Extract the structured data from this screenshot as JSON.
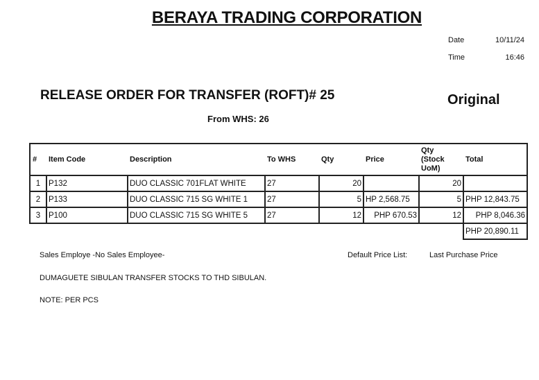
{
  "company": "BERAYA TRADING CORPORATION",
  "date_label": "Date",
  "date_value": "10/11/24",
  "time_label": "Time",
  "time_value": "16:46",
  "title": "RELEASE ORDER FOR TRANSFER (ROFT)# 25",
  "copy_label": "Original",
  "from_whs": "From WHS: 26",
  "table": {
    "headers": [
      "#",
      "Item Code",
      "Description",
      "To WHS",
      "Qty",
      "Price",
      "Qty\n(Stock\nUoM)",
      "Total"
    ],
    "rows": [
      {
        "no": "1",
        "code": "P132",
        "desc": "DUO CLASSIC 701FLAT WHITE",
        "whs": "27",
        "qty": "20",
        "price": "",
        "qty_uom": "20",
        "total": ""
      },
      {
        "no": "2",
        "code": "P133",
        "desc": "DUO CLASSIC 715 SG WHITE 1",
        "whs": "27",
        "qty": "5",
        "price": "HP 2,568.75",
        "qty_uom": "5",
        "total": "PHP 12,843.75"
      },
      {
        "no": "3",
        "code": "P100",
        "desc": "DUO CLASSIC 715 SG WHITE 5",
        "whs": "27",
        "qty": "12",
        "price": "PHP 670.53",
        "qty_uom": "12",
        "total": "PHP 8,046.36"
      }
    ],
    "grand_total": "PHP 20,890.11"
  },
  "sales_employee": "Sales Employe -No Sales Employee-",
  "price_list_label": "Default Price List:",
  "price_list_value": "Last Purchase Price",
  "remarks": "DUMAGUETE SIBULAN TRANSFER STOCKS TO THD SIBULAN.",
  "note": "NOTE: PER PCS"
}
